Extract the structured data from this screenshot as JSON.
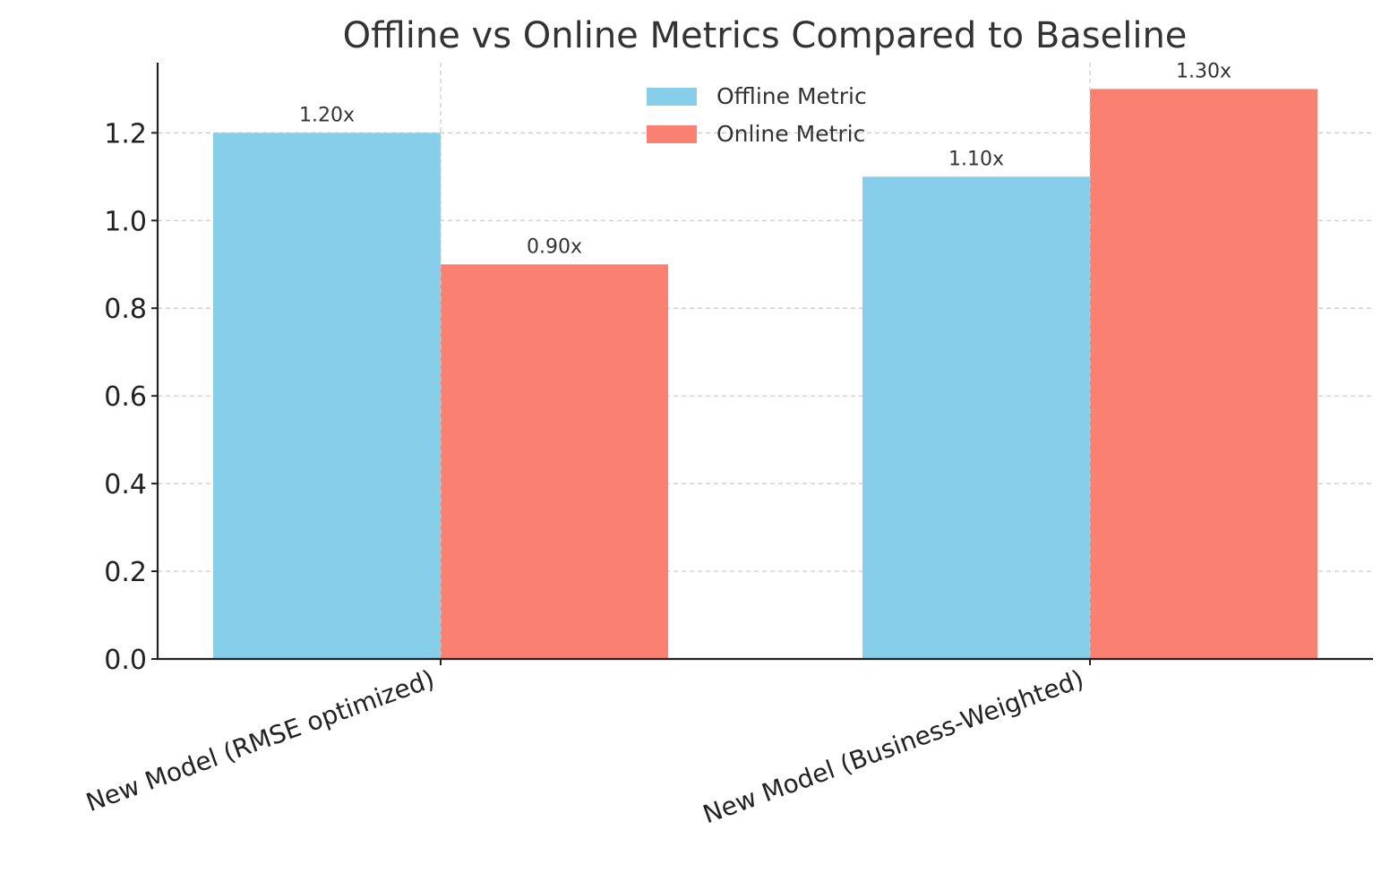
{
  "chart_data": {
    "type": "bar",
    "title": "Offline vs Online Metrics Compared to Baseline",
    "xlabel": "",
    "ylabel": "",
    "categories": [
      "New Model (RMSE optimized)",
      "New Model (Business-Weighted)"
    ],
    "series": [
      {
        "name": "Offline Metric",
        "color": "#87ceeb",
        "values": [
          1.2,
          1.1
        ],
        "labels": [
          "1.20x",
          "1.10x"
        ]
      },
      {
        "name": "Online Metric",
        "color": "#fa8072",
        "values": [
          0.9,
          1.3
        ],
        "labels": [
          "0.90x",
          "1.30x"
        ]
      }
    ],
    "ylim": [
      0,
      1.36
    ],
    "yticks": [
      "0.0",
      "0.2",
      "0.4",
      "0.6",
      "0.8",
      "1.0",
      "1.2"
    ],
    "grid": true,
    "legend_position": "top-center"
  }
}
